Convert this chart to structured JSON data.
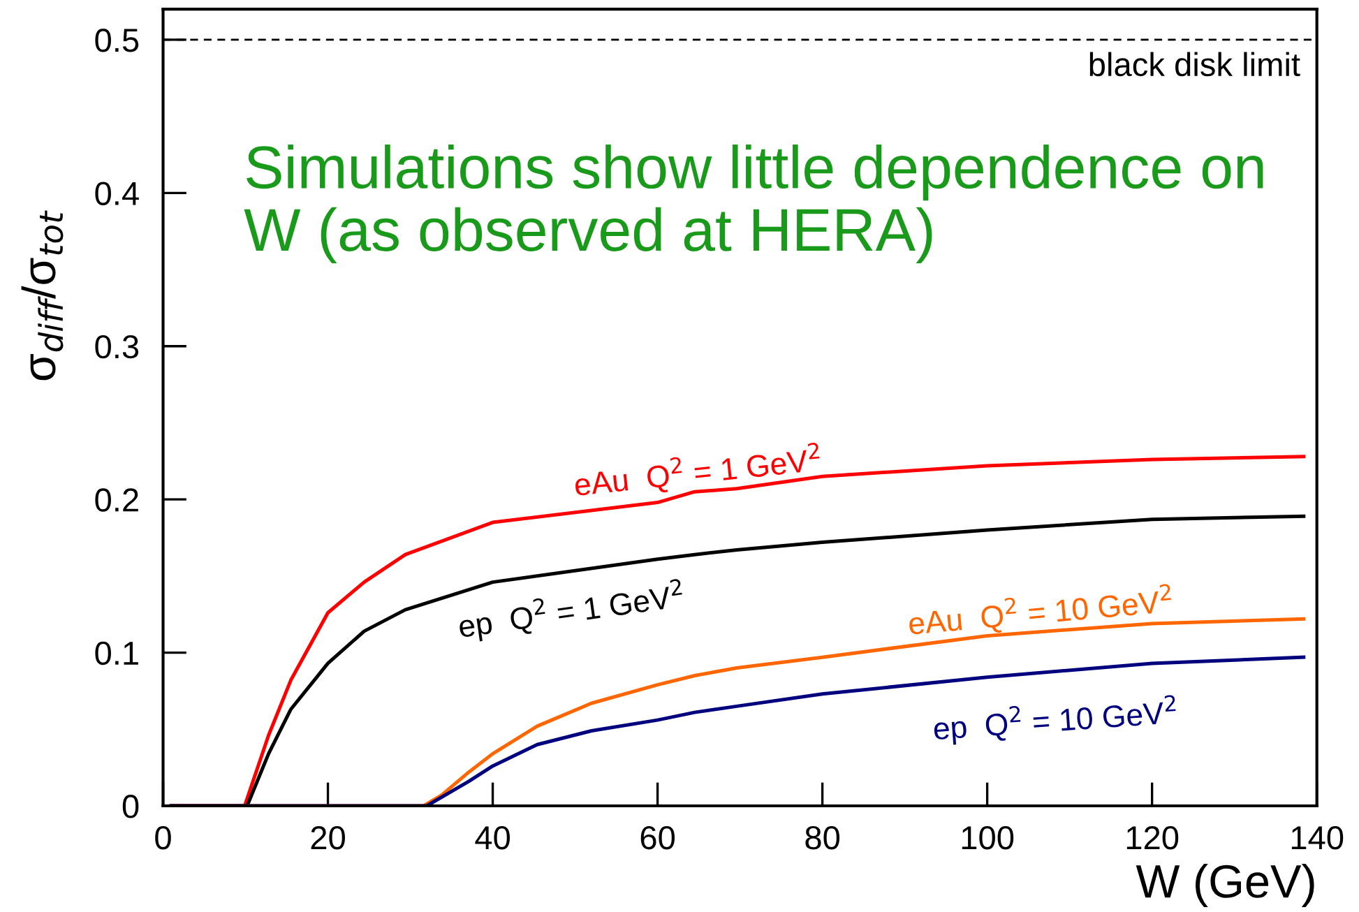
{
  "chart_data": {
    "type": "line",
    "xlabel": "W (GeV)",
    "ylabel": "σ$_{diff}$/σ$_{tot}$",
    "xlim": [
      0,
      140
    ],
    "ylim": [
      0,
      0.52
    ],
    "xticks": [
      0,
      20,
      40,
      60,
      80,
      100,
      120,
      140
    ],
    "yticks": [
      0,
      0.1,
      0.2,
      0.3,
      0.4,
      0.5
    ],
    "grid": false,
    "legend": false,
    "marker": "none",
    "line_style": "solid",
    "series": [
      {
        "color": "#ff0000",
        "x": [
          1,
          9.9,
          12.8,
          15.5,
          20,
          24.4,
          29.4,
          40,
          60,
          64.5,
          69.6,
          80,
          100,
          120,
          138.4
        ],
        "values": [
          0,
          0,
          0.046,
          0.082,
          0.126,
          0.146,
          0.164,
          0.185,
          0.198,
          0.205,
          0.207,
          0.215,
          0.222,
          0.226,
          0.228
        ]
      },
      {
        "color": "#000000",
        "x": [
          1,
          10.2,
          12.8,
          15.5,
          20,
          24.4,
          29.4,
          40,
          60,
          64.5,
          69.6,
          80,
          100,
          120,
          138.4
        ],
        "values": [
          0,
          0,
          0.034,
          0.063,
          0.093,
          0.114,
          0.128,
          0.146,
          0.161,
          0.164,
          0.167,
          0.172,
          0.18,
          0.187,
          0.189
        ]
      },
      {
        "color": "#ff6600",
        "x": [
          1,
          31.6,
          33.8,
          37.1,
          40,
          45.4,
          52,
          60,
          64.5,
          69.6,
          80,
          100,
          120,
          138.4
        ],
        "values": [
          0,
          0,
          0.007,
          0.022,
          0.034,
          0.052,
          0.067,
          0.079,
          0.085,
          0.09,
          0.097,
          0.111,
          0.119,
          0.122
        ]
      },
      {
        "color": "#00007f",
        "x": [
          1,
          32,
          37.1,
          40,
          45.4,
          52,
          60,
          64.5,
          69.6,
          80,
          100,
          120,
          138.4
        ],
        "values": [
          0,
          0,
          0.016,
          0.026,
          0.04,
          0.049,
          0.056,
          0.061,
          0.065,
          0.073,
          0.084,
          0.093,
          0.097
        ]
      }
    ],
    "ref_lines": [
      {
        "axis": "y",
        "value": 0.5,
        "label": "black disk limit",
        "color": "#000000",
        "line_style": "dashed"
      }
    ],
    "annotations": [
      {
        "text": "eAu  Q$^{2}$ = 1 GeV$^{2}$",
        "x": 50,
        "y": 0.192
      },
      {
        "text": "ep  Q$^{2}$ = 1 GeV$^{2}$",
        "x": 36,
        "y": 0.14
      },
      {
        "text": "eAu  Q$^{2}$ = 10 GeV$^{2}$",
        "x": 90.5,
        "y": 0.104
      },
      {
        "text": "ep  Q$^{2}$ = 10 GeV$^{2}$",
        "x": 93.5,
        "y": 0.081
      },
      "Simulations show little dependence on W (as observed at HERA)"
    ]
  }
}
